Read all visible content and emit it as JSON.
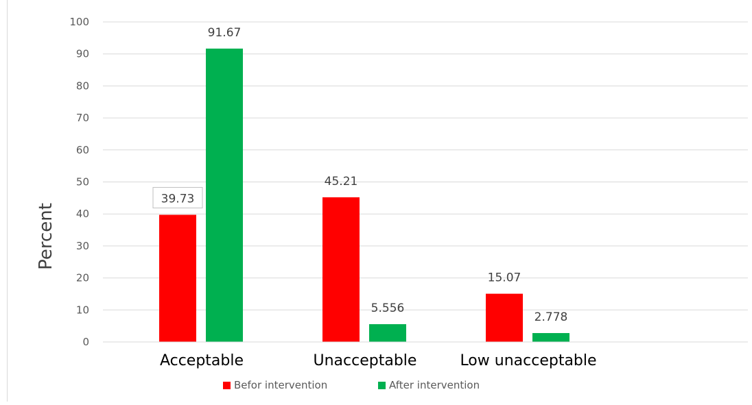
{
  "chart_data": {
    "type": "bar",
    "title": "",
    "xlabel": "",
    "ylabel": "Percent",
    "ylim": [
      0,
      100
    ],
    "yticks": [
      0,
      10,
      20,
      30,
      40,
      50,
      60,
      70,
      80,
      90,
      100
    ],
    "grid": true,
    "legend_position": "bottom",
    "categories": [
      "Acceptable",
      "Unacceptable",
      "Low unacceptable"
    ],
    "series": [
      {
        "name": "Befor intervention",
        "color": "#ff0000",
        "values": [
          39.73,
          45.21,
          15.07
        ],
        "labels": [
          "39.73",
          "45.21",
          "15.07"
        ]
      },
      {
        "name": "After intervention",
        "color": "#00b050",
        "values": [
          91.67,
          5.556,
          2.778
        ],
        "labels": [
          "91.67",
          "5.556",
          "2.778"
        ]
      }
    ],
    "boxed_label": {
      "series": 0,
      "category": 0
    }
  }
}
